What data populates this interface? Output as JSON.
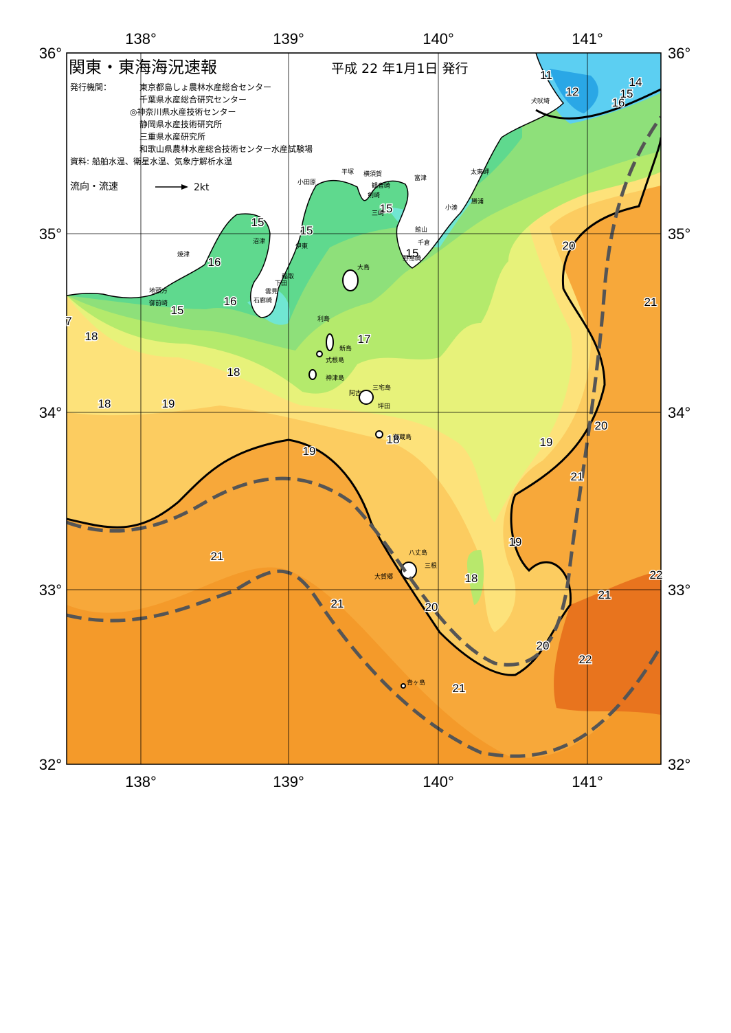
{
  "header": {
    "title": "関東・東海海況速報",
    "date": "平成 22 年1月1日 発行"
  },
  "issuers_label": "発行機関：",
  "issuers": [
    "東京都島しょ農林水産総合センター",
    "千葉県水産総合研究センター",
    "◎神奈川県水産技術センター",
    "静岡県水産技術研究所",
    "三重県水産研究所",
    "和歌山県農林水産総合技術センター水産試験場"
  ],
  "source": "資料: 船舶水温、衛星水温、気象庁解析水温",
  "legend": {
    "label": "流向・流速",
    "speed": "2kt"
  },
  "longitude_labels": [
    "138°",
    "139°",
    "140°",
    "141°"
  ],
  "latitude_labels": [
    "36°",
    "35°",
    "34°",
    "33°",
    "32°"
  ],
  "temperature_labels": [
    "11",
    "12",
    "14",
    "15",
    "16",
    "15",
    "15",
    "15",
    "15",
    "16",
    "16",
    "15",
    "7",
    "18",
    "17",
    "18",
    "18",
    "19",
    "18",
    "20",
    "19",
    "19",
    "21",
    "20",
    "21",
    "19",
    "21",
    "18",
    "21",
    "20",
    "21",
    "22",
    "20",
    "22",
    "21"
  ],
  "place_names": [
    "小田原",
    "平塚",
    "横須賀",
    "観音崎",
    "剣崎",
    "三崎",
    "富津",
    "太東岬",
    "勝浦",
    "小湊",
    "館山",
    "千倉",
    "野島崎",
    "犬吠埼",
    "焼津",
    "沼津",
    "伊東",
    "稲取",
    "下田",
    "雲見",
    "石廊崎",
    "地頭方",
    "御前崎",
    "大島",
    "利島",
    "新島",
    "式根島",
    "神津島",
    "三宅島",
    "阿古",
    "坪田",
    "御蔵島",
    "八丈島",
    "三根",
    "大賀郷",
    "青ヶ島"
  ]
}
